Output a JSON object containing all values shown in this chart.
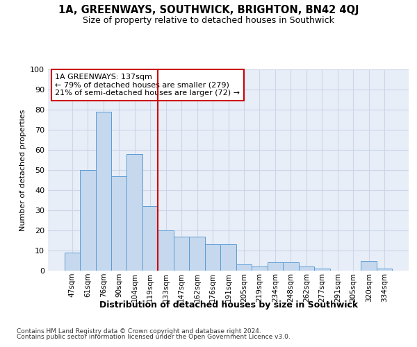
{
  "title": "1A, GREENWAYS, SOUTHWICK, BRIGHTON, BN42 4QJ",
  "subtitle": "Size of property relative to detached houses in Southwick",
  "xlabel": "Distribution of detached houses by size in Southwick",
  "ylabel": "Number of detached properties",
  "categories": [
    "47sqm",
    "61sqm",
    "76sqm",
    "90sqm",
    "104sqm",
    "119sqm",
    "133sqm",
    "147sqm",
    "162sqm",
    "176sqm",
    "191sqm",
    "205sqm",
    "219sqm",
    "234sqm",
    "248sqm",
    "262sqm",
    "277sqm",
    "291sqm",
    "305sqm",
    "320sqm",
    "334sqm"
  ],
  "values": [
    9,
    50,
    79,
    47,
    58,
    32,
    20,
    17,
    17,
    13,
    13,
    3,
    2,
    4,
    4,
    2,
    1,
    0,
    0,
    5,
    1
  ],
  "bar_color": "#c5d8ed",
  "bar_edge_color": "#5b9bd5",
  "vline_index": 6,
  "annotation_line1": "1A GREENWAYS: 137sqm",
  "annotation_line2": "← 79% of detached houses are smaller (279)",
  "annotation_line3": "21% of semi-detached houses are larger (72) →",
  "vline_color": "#cc0000",
  "annotation_box_edge_color": "#cc0000",
  "grid_color": "#ccd6e8",
  "background_color": "#e8eef8",
  "footer_line1": "Contains HM Land Registry data © Crown copyright and database right 2024.",
  "footer_line2": "Contains public sector information licensed under the Open Government Licence v3.0.",
  "ylim": [
    0,
    100
  ],
  "yticks": [
    0,
    10,
    20,
    30,
    40,
    50,
    60,
    70,
    80,
    90,
    100
  ]
}
